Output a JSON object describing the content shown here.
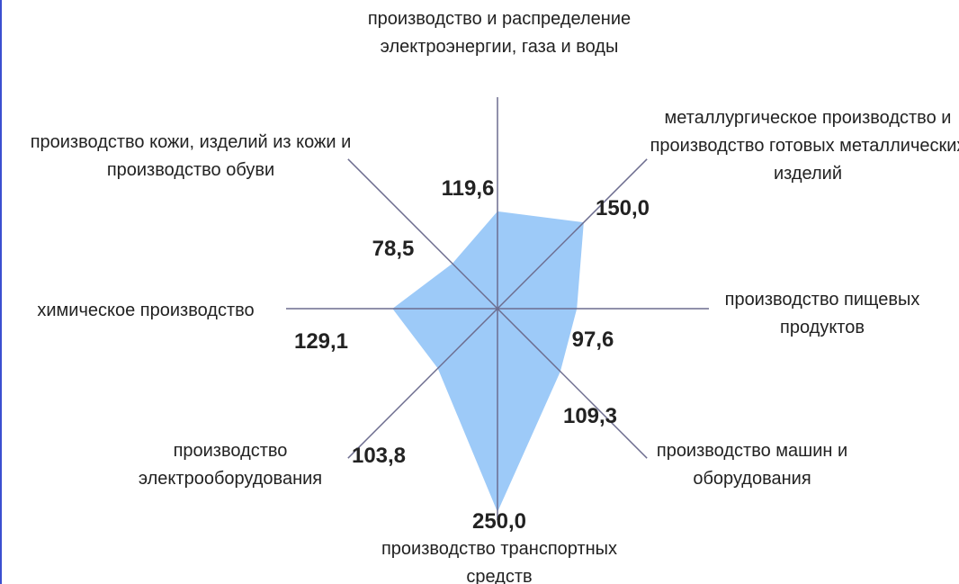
{
  "chart_data": {
    "type": "radar",
    "categories": [
      "производство и распределение электроэнергии, газа и воды",
      "металлургическое производство и производство готовых металлических изделий",
      "производство пищевых продуктов",
      "производство машин и оборудования",
      "производство транспортных средств",
      "производство электрооборудования",
      "химическое производство",
      "производство кожи, изделий из кожи и производство обуви"
    ],
    "values": [
      119.6,
      150.0,
      97.6,
      109.3,
      250.0,
      103.8,
      129.1,
      78.5
    ],
    "value_labels": [
      "119,6",
      "150,0",
      "97,6",
      "109,3",
      "250,0",
      "103,8",
      "129,1",
      "78,5"
    ],
    "rlim": [
      0,
      260
    ],
    "color": "#9dcaf8"
  }
}
